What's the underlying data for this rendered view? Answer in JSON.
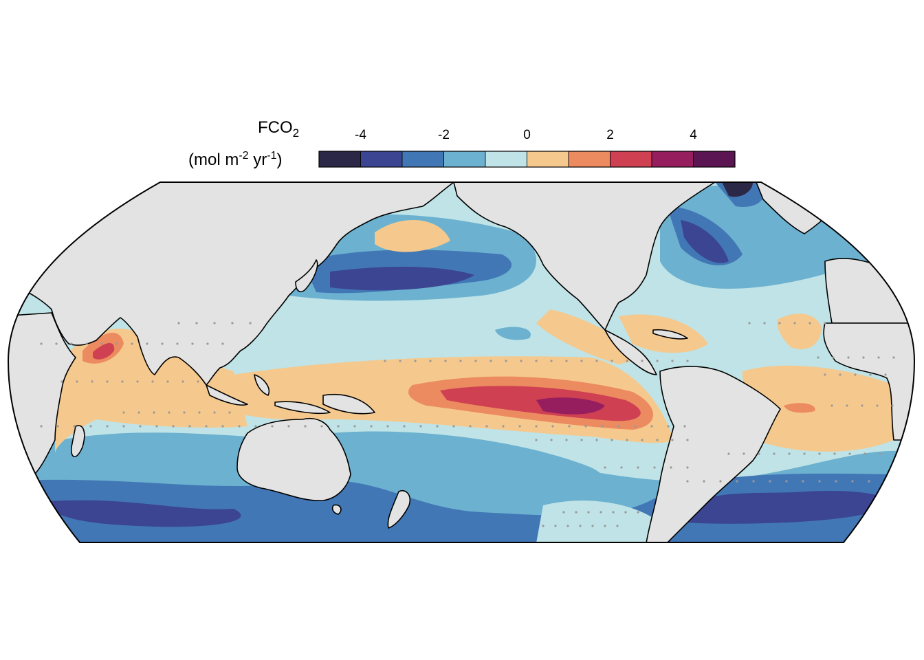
{
  "legend": {
    "variable": "FCO",
    "variable_subscript": "2",
    "unit_prefix": "(mol m",
    "unit_exp1": "-2",
    "unit_mid": " yr",
    "unit_exp2": "-1",
    "unit_suffix": ")",
    "ticks": [
      "-4",
      "-2",
      "0",
      "2",
      "4"
    ],
    "tick_values": [
      -4,
      -2,
      0,
      2,
      4
    ],
    "range": [
      -5,
      5
    ],
    "bins": [
      {
        "min": -5,
        "max": -4,
        "color": "#2b2847"
      },
      {
        "min": -4,
        "max": -3,
        "color": "#3b4591"
      },
      {
        "min": -3,
        "max": -2,
        "color": "#4277b6"
      },
      {
        "min": -2,
        "max": -1,
        "color": "#6cb1cf"
      },
      {
        "min": -1,
        "max": 0,
        "color": "#bfe3e6"
      },
      {
        "min": 0,
        "max": 1,
        "color": "#f5c98d"
      },
      {
        "min": 1,
        "max": 2,
        "color": "#ec8a60"
      },
      {
        "min": 2,
        "max": 3,
        "color": "#cf4152"
      },
      {
        "min": 3,
        "max": 4,
        "color": "#961e5e"
      },
      {
        "min": 4,
        "max": 5,
        "color": "#5b1552"
      }
    ]
  },
  "map": {
    "projection": "pacific-centred equal-earth",
    "land_color": "#e3e3e3",
    "coastline_color": "#000000",
    "stipple_color": "#9a9a9a",
    "patterns": {
      "equatorial_pacific": "positive flux, max ~4",
      "north_pacific": "negative flux, ~-4",
      "north_atlantic": "negative flux, <-4",
      "southern_ocean": "negative flux, ~-3",
      "arabian_sea": "positive flux, ~3"
    }
  }
}
